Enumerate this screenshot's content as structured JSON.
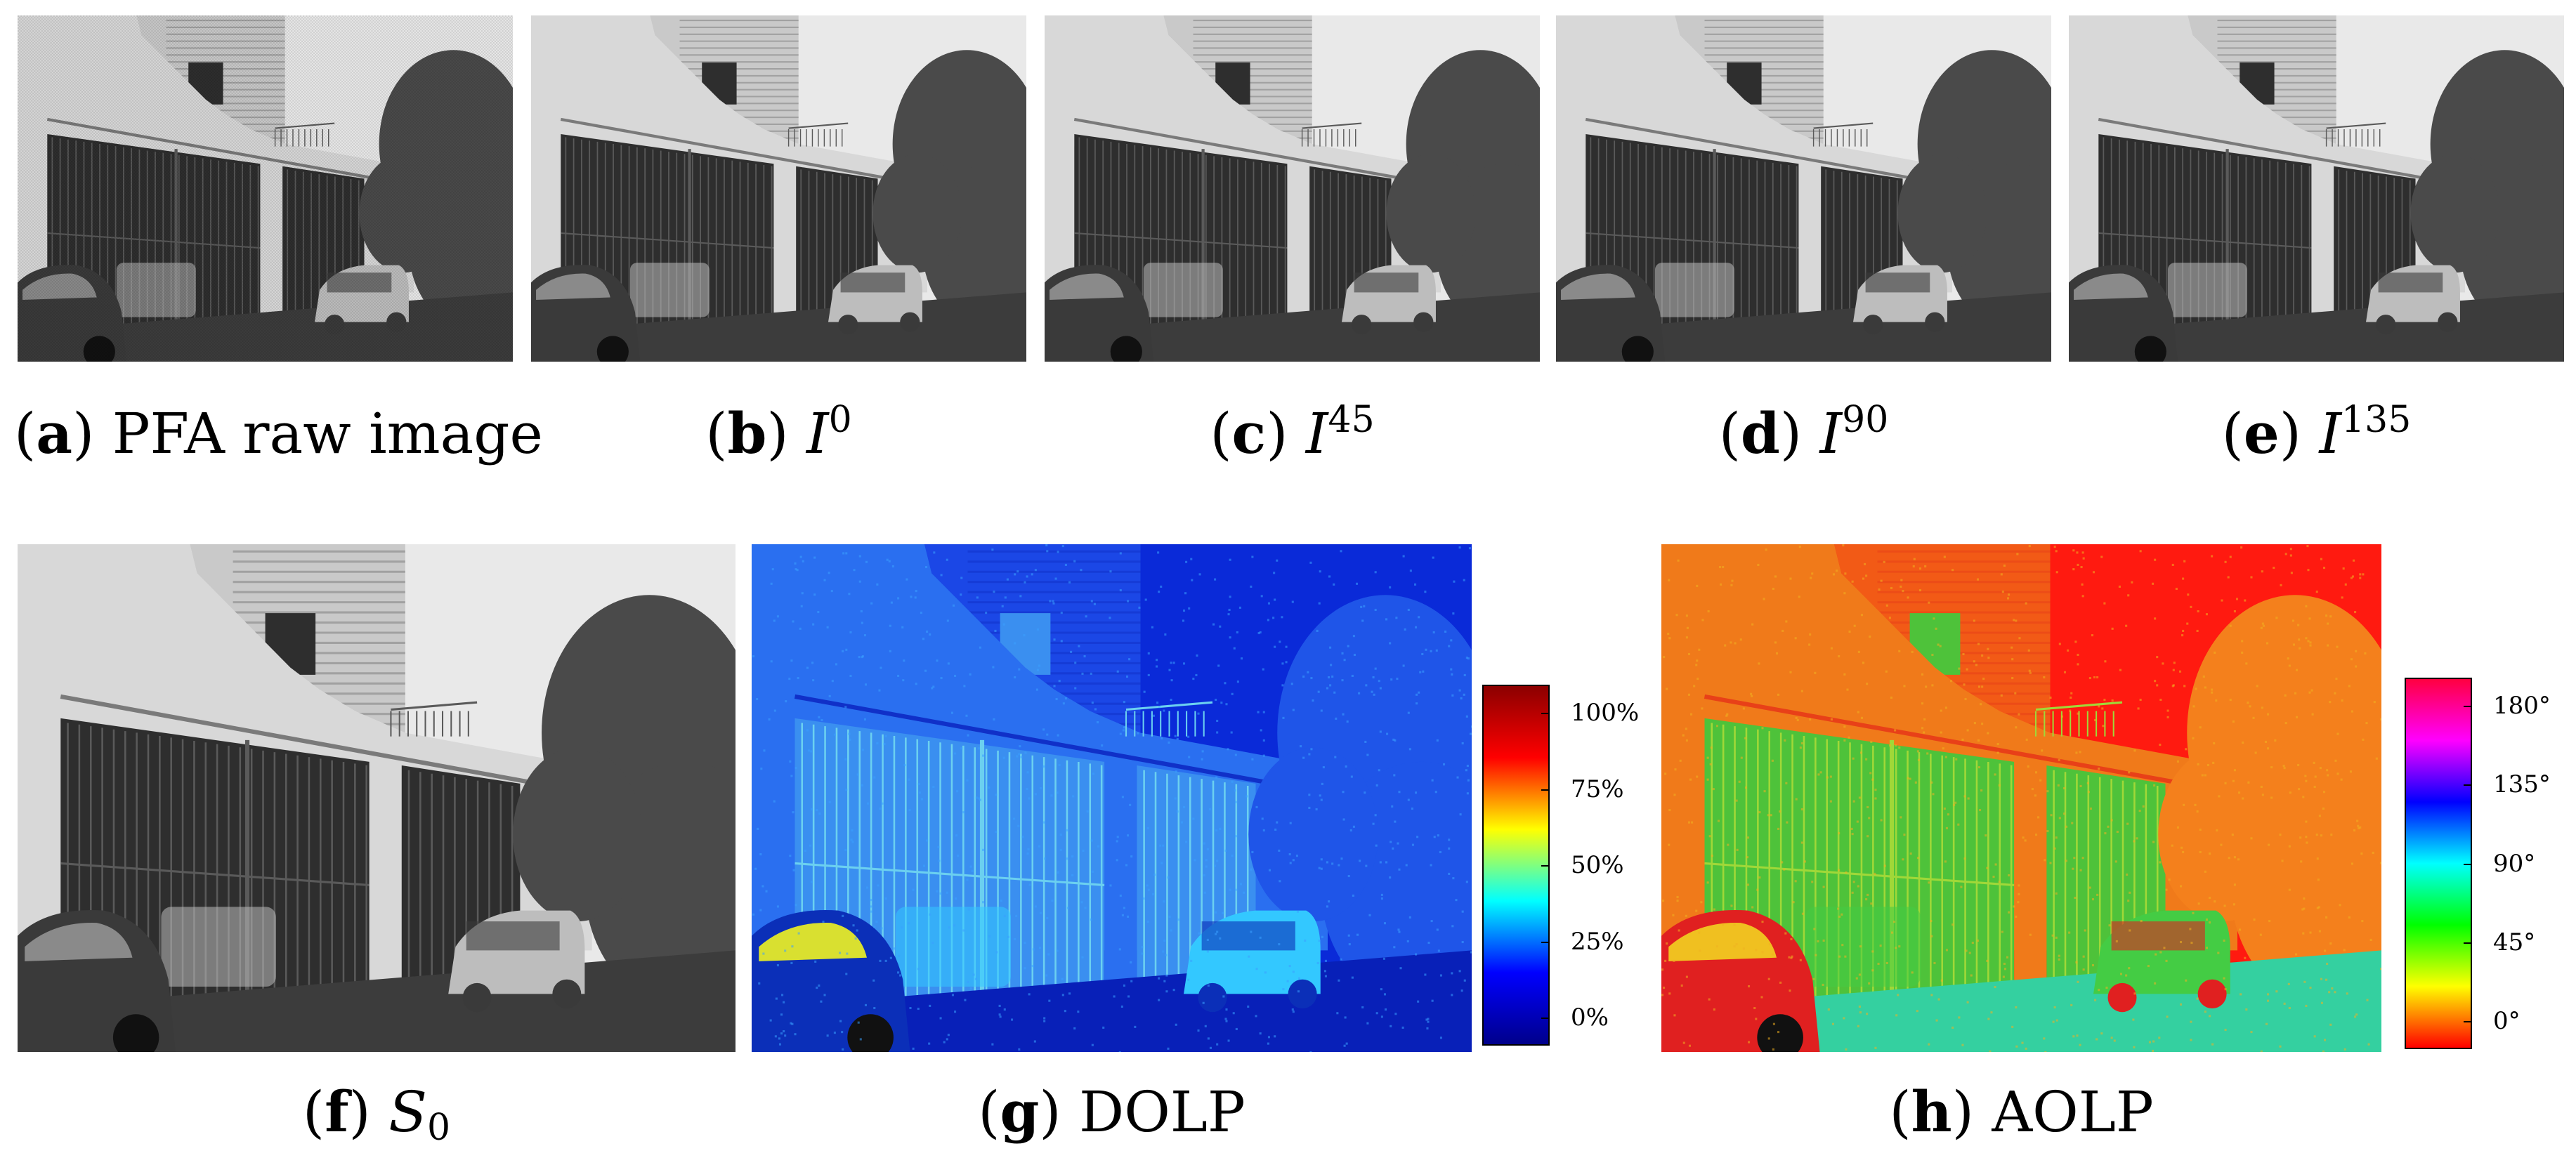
{
  "figure": {
    "panels": [
      {
        "id": "a",
        "letter": "a",
        "text": "PFA raw image",
        "symbol": "",
        "sup": "",
        "sub": "",
        "kind": "gray-grid"
      },
      {
        "id": "b",
        "letter": "b",
        "text": "",
        "symbol": "I",
        "sup": "0",
        "sub": "",
        "kind": "gray"
      },
      {
        "id": "c",
        "letter": "c",
        "text": "",
        "symbol": "I",
        "sup": "45",
        "sub": "",
        "kind": "gray"
      },
      {
        "id": "d",
        "letter": "d",
        "text": "",
        "symbol": "I",
        "sup": "90",
        "sub": "",
        "kind": "gray"
      },
      {
        "id": "e",
        "letter": "e",
        "text": "",
        "symbol": "I",
        "sup": "135",
        "sub": "",
        "kind": "gray"
      },
      {
        "id": "f",
        "letter": "f",
        "text": "",
        "symbol": "S",
        "sup": "",
        "sub": "0",
        "kind": "gray"
      },
      {
        "id": "g",
        "letter": "g",
        "text": "DOLP",
        "symbol": "",
        "sup": "",
        "sub": "",
        "kind": "dolp"
      },
      {
        "id": "h",
        "letter": "h",
        "text": "AOLP",
        "symbol": "",
        "sup": "",
        "sub": "",
        "kind": "aolp"
      }
    ],
    "dolp_colorbar": {
      "ticks": [
        "100%",
        "75%",
        "50%",
        "25%",
        "0%"
      ],
      "colors": [
        "#8b0000",
        "#ff0000",
        "#ffff00",
        "#00ffff",
        "#0000ff",
        "#00008b"
      ]
    },
    "aolp_colorbar": {
      "ticks": [
        "180°",
        "135°",
        "90°",
        "45°",
        "0°"
      ],
      "colors": [
        "#ff0040",
        "#ff00ff",
        "#0000ff",
        "#00ffff",
        "#00ff00",
        "#ffff00",
        "#ff0000"
      ]
    }
  }
}
